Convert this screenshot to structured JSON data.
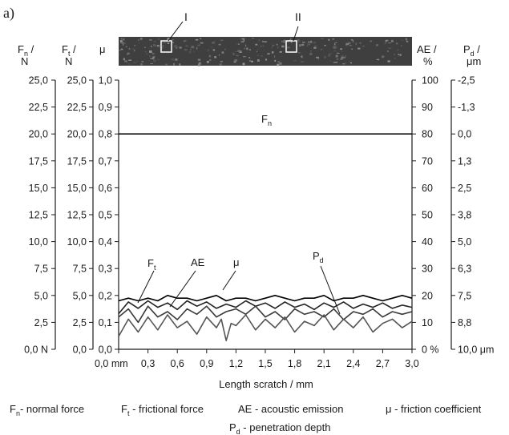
{
  "panel_label": "a)",
  "chart_data": {
    "type": "line",
    "xlabel": "Length scratch / mm",
    "xlim": [
      0,
      3.0
    ],
    "x_ticks": [
      "0,0 mm",
      "0,3",
      "0,6",
      "0,9",
      "1,2",
      "1,5",
      "1,8",
      "2,1",
      "2,4",
      "2,7",
      "3,0"
    ],
    "axes": {
      "fn": {
        "header": [
          "F",
          "n",
          "/",
          "N"
        ],
        "ticks": [
          "25,0",
          "22,5",
          "20,0",
          "17,5",
          "15,0",
          "12,5",
          "10,0",
          "7,5",
          "5,0",
          "2,5",
          "0,0 N"
        ],
        "lim": [
          0,
          25
        ]
      },
      "ft": {
        "header": [
          "F",
          "t",
          "/",
          "N"
        ],
        "ticks": [
          "25,0",
          "22,5",
          "20,0",
          "17,5",
          "15,0",
          "12,5",
          "10,0",
          "7,5",
          "5,0",
          "2,5",
          "0,0"
        ],
        "lim": [
          0,
          25
        ]
      },
      "mu": {
        "header": [
          "μ"
        ],
        "ticks": [
          "1,0",
          "0,9",
          "0,8",
          "0,7",
          "0,6",
          "0,5",
          "0,4",
          "0,3",
          "0,2",
          "0,1",
          "0,0"
        ],
        "lim": [
          0,
          1.0
        ]
      },
      "ae": {
        "header": [
          "AE /",
          "%"
        ],
        "ticks": [
          "100",
          "90",
          "80",
          "70",
          "60",
          "50",
          "40",
          "30",
          "20",
          "10",
          "0 %"
        ],
        "lim": [
          0,
          100
        ]
      },
      "pd": {
        "header": [
          "P",
          "d",
          "/",
          "μm"
        ],
        "ticks": [
          "-2,5",
          "-1,3",
          "0,0",
          "1,3",
          "2,5",
          "3,8",
          "5,0",
          "6,3",
          "7,5",
          "8,8",
          "10,0 μm"
        ],
        "lim": [
          -2.5,
          10.0
        ]
      }
    },
    "series": [
      {
        "label": "F",
        "label_sub": "n",
        "axis": "fn",
        "color": "#111111",
        "x": [
          0,
          0.5,
          1.0,
          1.5,
          2.0,
          2.5,
          3.0
        ],
        "values": [
          20.0,
          20.0,
          20.0,
          20.0,
          20.0,
          20.0,
          20.0
        ]
      },
      {
        "label": "F",
        "label_sub": "t",
        "axis": "ft",
        "color": "#222222",
        "x": [
          0,
          0.1,
          0.2,
          0.3,
          0.4,
          0.5,
          0.6,
          0.7,
          0.8,
          0.9,
          1.0,
          1.1,
          1.2,
          1.3,
          1.4,
          1.5,
          1.6,
          1.7,
          1.8,
          1.9,
          2.0,
          2.1,
          2.2,
          2.3,
          2.4,
          2.5,
          2.6,
          2.7,
          2.8,
          2.9,
          3.0
        ],
        "values": [
          3.3,
          4.4,
          3.8,
          4.5,
          3.9,
          4.3,
          3.7,
          4.5,
          4.0,
          4.4,
          3.8,
          4.2,
          3.9,
          4.5,
          4.0,
          4.3,
          3.8,
          4.4,
          3.9,
          4.2,
          3.7,
          4.3,
          3.9,
          4.4,
          3.8,
          4.2,
          3.9,
          4.3,
          3.8,
          4.1,
          3.9
        ]
      },
      {
        "label": "AE",
        "axis": "ae",
        "color": "#3a3a3a",
        "x": [
          0,
          0.1,
          0.2,
          0.3,
          0.4,
          0.5,
          0.6,
          0.7,
          0.8,
          0.9,
          1.0,
          1.1,
          1.2,
          1.3,
          1.4,
          1.5,
          1.6,
          1.7,
          1.8,
          1.9,
          2.0,
          2.1,
          2.2,
          2.3,
          2.4,
          2.5,
          2.6,
          2.7,
          2.8,
          2.9,
          3.0
        ],
        "values": [
          12,
          15,
          10,
          16,
          12,
          14,
          11,
          15,
          13,
          16,
          12,
          14,
          15,
          13,
          16,
          12,
          14,
          11,
          15,
          13,
          14,
          12,
          15,
          11,
          14,
          13,
          15,
          12,
          14,
          13,
          14
        ]
      },
      {
        "label": "μ",
        "axis": "mu",
        "color": "#000000",
        "x": [
          0,
          0.1,
          0.2,
          0.3,
          0.4,
          0.5,
          0.6,
          0.7,
          0.8,
          0.9,
          1.0,
          1.1,
          1.2,
          1.3,
          1.4,
          1.5,
          1.6,
          1.7,
          1.8,
          1.9,
          2.0,
          2.1,
          2.2,
          2.3,
          2.4,
          2.5,
          2.6,
          2.7,
          2.8,
          2.9,
          3.0
        ],
        "values": [
          0.18,
          0.19,
          0.18,
          0.19,
          0.18,
          0.2,
          0.19,
          0.19,
          0.18,
          0.19,
          0.2,
          0.18,
          0.19,
          0.19,
          0.18,
          0.19,
          0.2,
          0.19,
          0.18,
          0.19,
          0.19,
          0.2,
          0.18,
          0.19,
          0.19,
          0.2,
          0.19,
          0.18,
          0.19,
          0.2,
          0.19
        ]
      },
      {
        "label": "P",
        "label_sub": "d",
        "axis": "pd",
        "color": "#555555",
        "x": [
          0,
          0.1,
          0.2,
          0.3,
          0.4,
          0.5,
          0.6,
          0.7,
          0.8,
          0.9,
          1.0,
          1.05,
          1.1,
          1.15,
          1.2,
          1.3,
          1.4,
          1.5,
          1.6,
          1.7,
          1.8,
          1.9,
          2.0,
          2.1,
          2.2,
          2.3,
          2.4,
          2.5,
          2.6,
          2.7,
          2.8,
          2.9,
          3.0
        ],
        "values": [
          9.4,
          8.6,
          9.2,
          8.5,
          9.1,
          8.4,
          9.0,
          8.7,
          9.3,
          8.5,
          9.0,
          8.6,
          9.6,
          8.8,
          8.9,
          8.4,
          9.1,
          8.6,
          9.0,
          8.5,
          9.2,
          8.7,
          8.9,
          8.4,
          9.1,
          8.6,
          9.0,
          8.5,
          9.2,
          8.8,
          8.6,
          9.0,
          8.7
        ]
      }
    ],
    "micrograph_markers": [
      "I",
      "II"
    ],
    "legend": [
      {
        "sym": "F",
        "sub": "n",
        "text": "- normal force"
      },
      {
        "sym": "F",
        "sub": "t",
        "text": " - frictional force"
      },
      {
        "sym": "",
        "sub": "",
        "text": "AE - acoustic emission"
      },
      {
        "sym": "μ",
        "sub": "",
        "text": " - friction coefficient"
      },
      {
        "sym": "P",
        "sub": "d",
        "text": " - penetration depth"
      }
    ]
  }
}
